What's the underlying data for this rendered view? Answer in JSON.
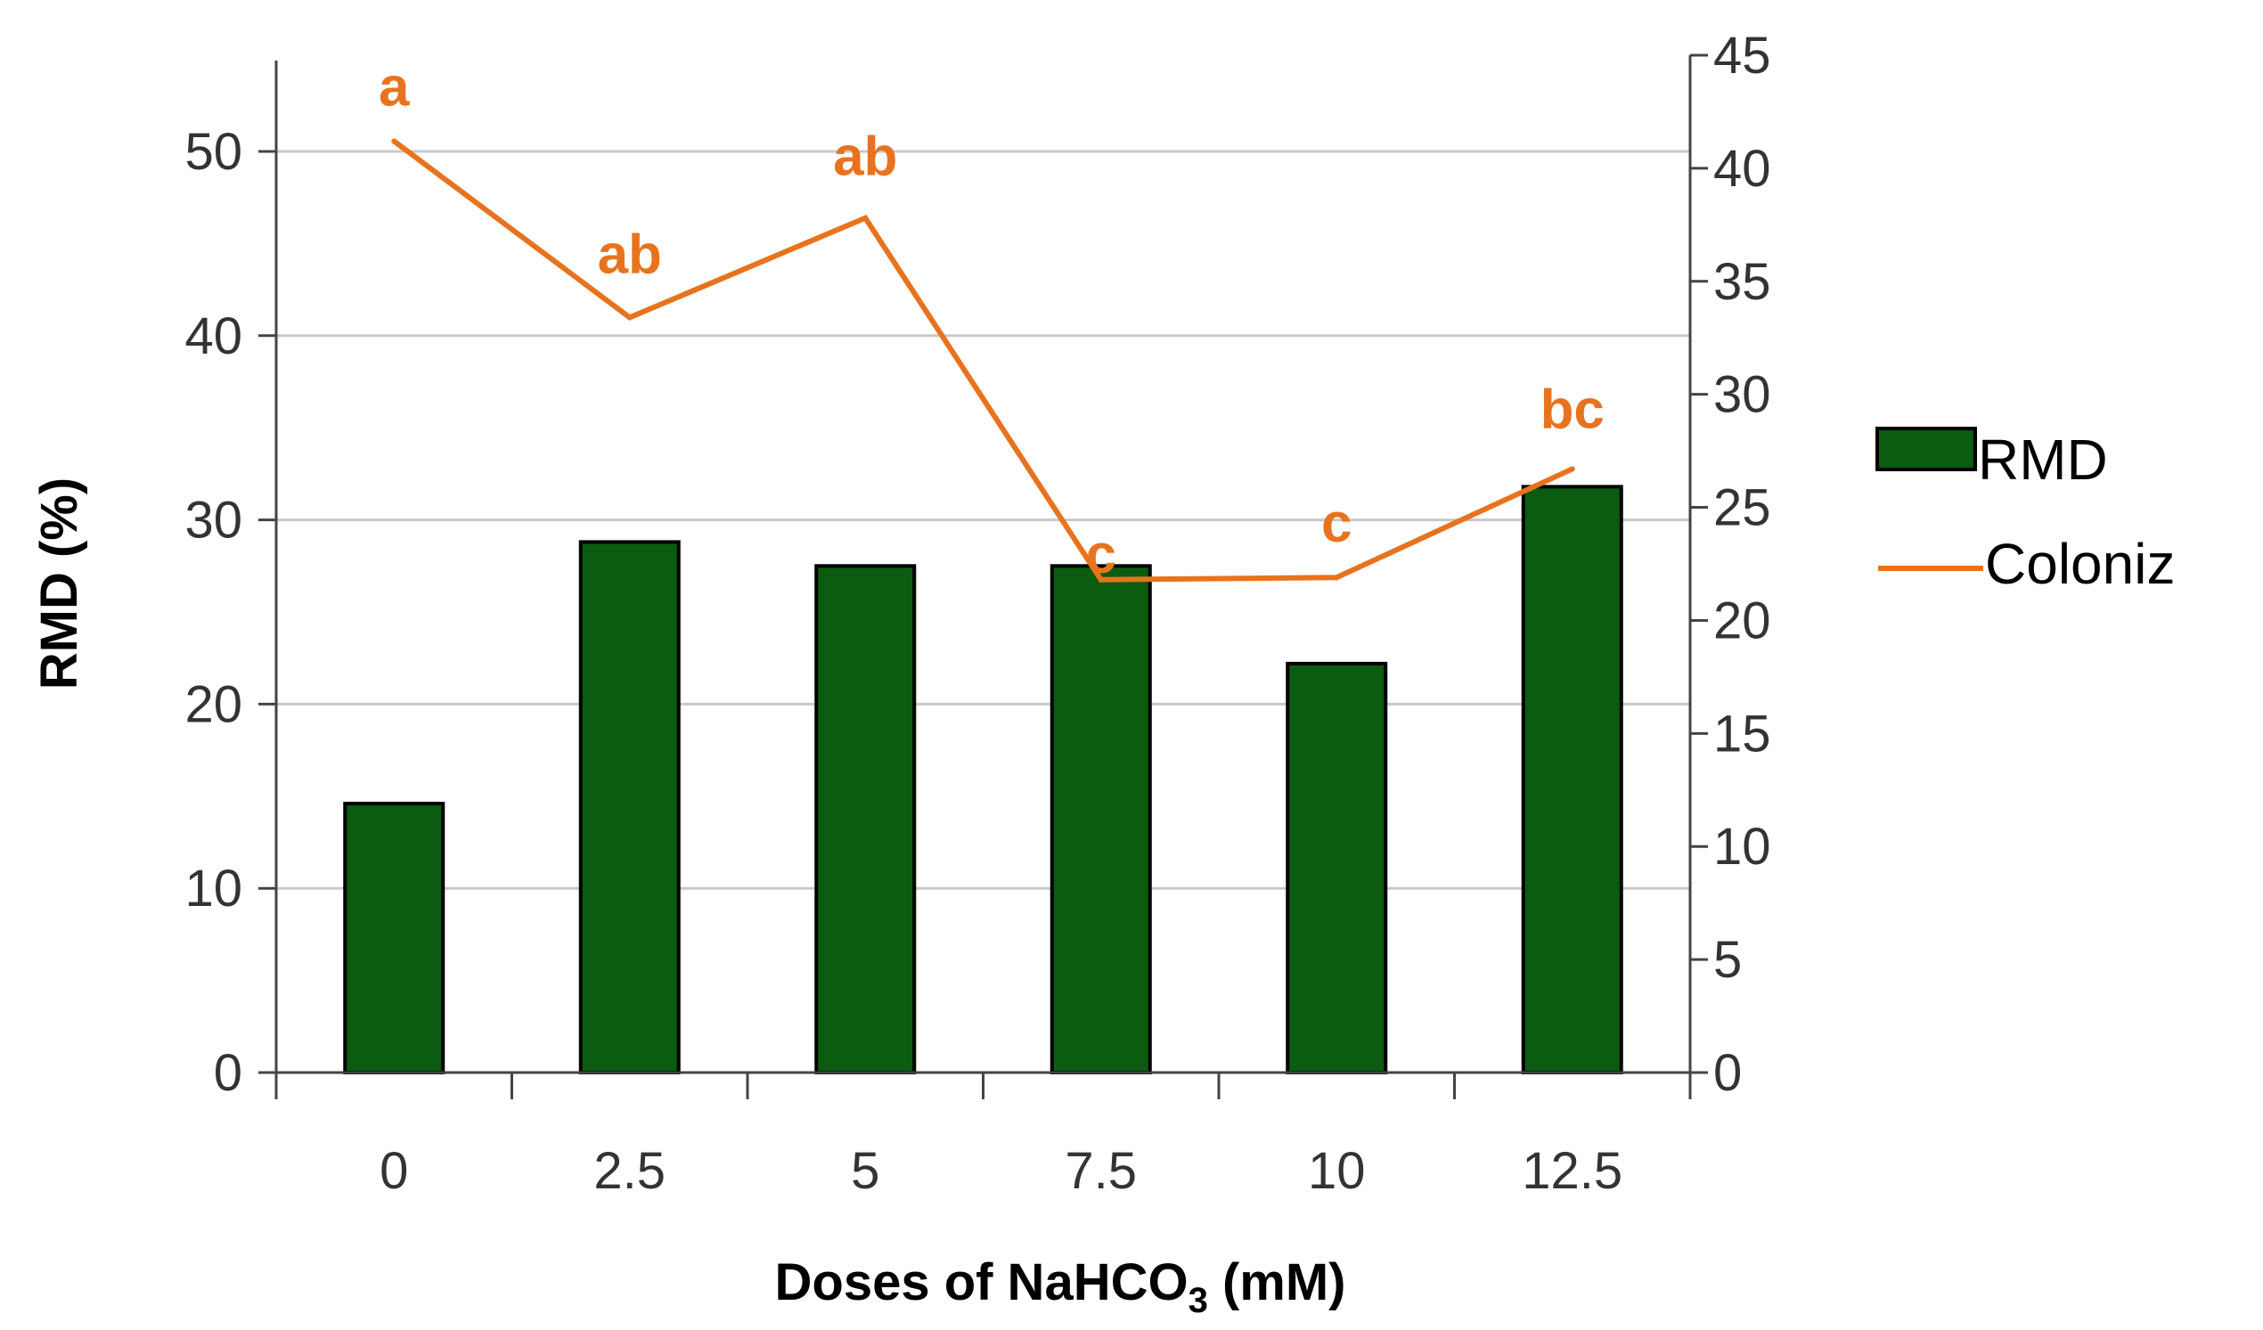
{
  "chart_data": {
    "type": "bar",
    "title": "",
    "xlabel": "Doses of NaHCO",
    "xlabel_subscript": "3",
    "xlabel_suffix": " (mM)",
    "ylabel": "RMD (%)",
    "y2label": "",
    "categories": [
      "0",
      "2.5",
      "5",
      "7.5",
      "10",
      "12.5"
    ],
    "ylim": [
      0,
      55
    ],
    "yticks": [
      "0",
      "10",
      "20",
      "30",
      "40",
      "50"
    ],
    "y2lim": [
      0,
      45
    ],
    "y2ticks": [
      "0",
      "5",
      "10",
      "15",
      "20",
      "25",
      "30",
      "35",
      "40",
      "45"
    ],
    "grid": true,
    "legend_position": "right",
    "series": [
      {
        "name": "RMD",
        "type": "bar",
        "axis": "left",
        "color": "#0b5b10",
        "values": [
          14.6,
          28.8,
          27.5,
          27.5,
          22.2,
          31.8
        ]
      },
      {
        "name": "Coloniz",
        "type": "line",
        "axis": "right",
        "color": "#e8731e",
        "values": [
          41.2,
          33.4,
          37.8,
          21.8,
          21.9,
          26.7
        ],
        "annotations": [
          "a",
          "ab",
          "ab",
          "c",
          "c",
          "bc"
        ]
      }
    ]
  }
}
